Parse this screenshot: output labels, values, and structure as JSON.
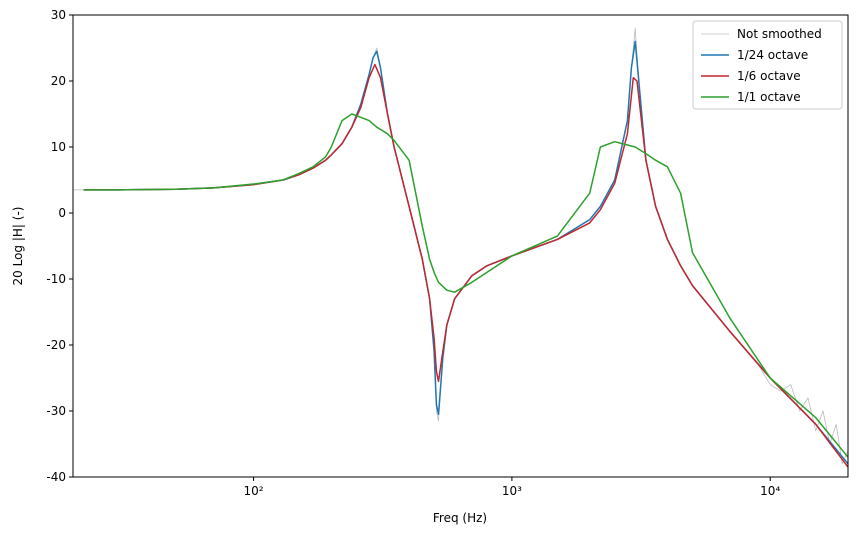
{
  "chart_data": {
    "type": "line",
    "xlabel": "Freq (Hz)",
    "ylabel": "20 Log |H| (-)",
    "xscale": "log",
    "xlim": [
      20,
      20000
    ],
    "ylim": [
      -40,
      30
    ],
    "xticks": [
      {
        "value": 100,
        "label": "10²"
      },
      {
        "value": 1000,
        "label": "10³"
      },
      {
        "value": 10000,
        "label": "10⁴"
      }
    ],
    "yticks": [
      -40,
      -30,
      -20,
      -10,
      0,
      10,
      20,
      30
    ],
    "legend": "upper right",
    "series": [
      {
        "name": "Not smoothed",
        "color": "#bbbbbb",
        "width": 0.8,
        "x": [
          20,
          30,
          50,
          70,
          100,
          130,
          150,
          170,
          190,
          200,
          220,
          240,
          260,
          280,
          290,
          300,
          310,
          330,
          350,
          400,
          450,
          480,
          500,
          510,
          520,
          540,
          560,
          600,
          700,
          800,
          1000,
          1500,
          2000,
          2200,
          2500,
          2800,
          2900,
          3000,
          3100,
          3300,
          3600,
          4000,
          4500,
          5000,
          7000,
          9000,
          10000,
          11000,
          12000,
          13000,
          14000,
          15000,
          16000,
          17000,
          18000,
          19000,
          20000
        ],
        "values": [
          3.5,
          3.5,
          3.6,
          3.8,
          4.3,
          5.0,
          5.8,
          6.8,
          8,
          8.8,
          10.5,
          13,
          16.5,
          21,
          23.5,
          25,
          22,
          15,
          10,
          1,
          -7,
          -13,
          -21,
          -30,
          -31.5,
          -22,
          -17,
          -13,
          -9.5,
          -8,
          -6.5,
          -4,
          -1,
          1,
          5,
          14,
          22,
          28,
          20,
          8,
          1,
          -4,
          -8,
          -11,
          -18,
          -23,
          -26,
          -27,
          -26,
          -30,
          -28,
          -33,
          -30,
          -35,
          -32,
          -38,
          -36
        ]
      },
      {
        "name": "1/24 octave",
        "color": "#1f77b4",
        "width": 1.5,
        "x": [
          22,
          30,
          50,
          70,
          100,
          130,
          150,
          170,
          190,
          200,
          220,
          240,
          260,
          280,
          290,
          300,
          310,
          330,
          350,
          400,
          450,
          480,
          500,
          510,
          520,
          540,
          560,
          600,
          700,
          800,
          1000,
          1500,
          2000,
          2200,
          2500,
          2800,
          2900,
          3000,
          3100,
          3300,
          3600,
          4000,
          4500,
          5000,
          7000,
          10000,
          15000,
          20000
        ],
        "values": [
          3.5,
          3.5,
          3.6,
          3.8,
          4.3,
          5.0,
          5.8,
          6.8,
          8,
          8.8,
          10.5,
          13,
          16.5,
          21,
          23.5,
          24.5,
          22,
          15,
          10,
          1,
          -7,
          -13,
          -21,
          -29,
          -30.5,
          -22,
          -17,
          -13,
          -9.5,
          -8,
          -6.5,
          -4,
          -1,
          1,
          5,
          14,
          22,
          26,
          20,
          8,
          1,
          -4,
          -8,
          -11,
          -18,
          -25,
          -32,
          -38
        ]
      },
      {
        "name": "1/6 octave",
        "color": "#c1272d",
        "width": 1.5,
        "x": [
          22,
          30,
          50,
          70,
          100,
          130,
          150,
          170,
          190,
          200,
          220,
          240,
          260,
          280,
          295,
          310,
          330,
          350,
          400,
          450,
          480,
          500,
          510,
          520,
          540,
          560,
          600,
          700,
          800,
          1000,
          1500,
          2000,
          2200,
          2500,
          2800,
          2950,
          3050,
          3300,
          3600,
          4000,
          4500,
          5000,
          7000,
          10000,
          15000,
          20000
        ],
        "values": [
          3.5,
          3.5,
          3.6,
          3.8,
          4.3,
          5.0,
          5.8,
          6.8,
          8,
          8.8,
          10.5,
          13,
          16,
          20.5,
          22.5,
          20.5,
          15,
          10,
          1,
          -7,
          -13,
          -19,
          -24,
          -25.5,
          -21,
          -17,
          -13,
          -9.5,
          -8,
          -6.5,
          -4,
          -1.5,
          0.5,
          4.5,
          12,
          20.5,
          20,
          8,
          1,
          -4,
          -8,
          -11,
          -18,
          -25,
          -32,
          -38.5
        ]
      },
      {
        "name": "1/1 octave",
        "color": "#2ca02c",
        "width": 1.5,
        "x": [
          22,
          30,
          50,
          70,
          100,
          130,
          150,
          170,
          190,
          200,
          220,
          240,
          260,
          280,
          300,
          330,
          350,
          400,
          450,
          480,
          500,
          520,
          560,
          600,
          700,
          800,
          1000,
          1500,
          2000,
          2200,
          2500,
          2800,
          3000,
          3300,
          3600,
          4000,
          4500,
          5000,
          7000,
          10000,
          15000,
          20000
        ],
        "values": [
          3.5,
          3.5,
          3.6,
          3.8,
          4.4,
          5,
          6,
          7,
          8.5,
          10,
          14,
          15,
          14.5,
          14,
          13,
          12,
          11,
          8,
          -2,
          -7,
          -9,
          -10.5,
          -11.7,
          -12,
          -10.5,
          -9,
          -6.5,
          -3.5,
          3,
          10,
          10.8,
          10.3,
          10,
          9,
          8,
          7,
          3,
          -6,
          -16,
          -25,
          -31,
          -37
        ]
      }
    ]
  }
}
